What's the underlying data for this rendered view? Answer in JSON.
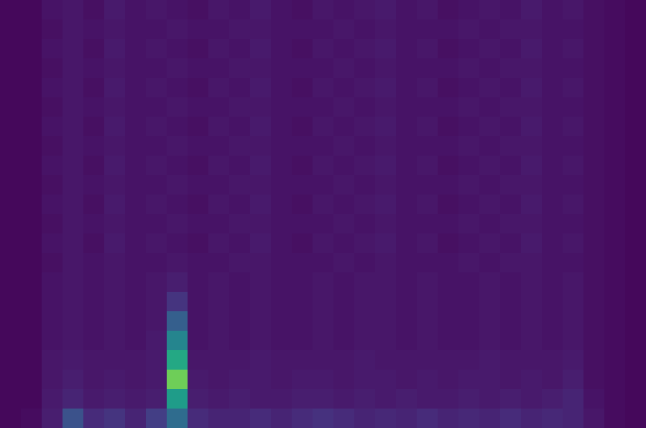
{
  "chart_data": {
    "type": "heatmap",
    "color": "Viridis",
    "tick_labels": false,
    "xlim": [
      -0.5,
      30.5
    ],
    "ylim": [
      21.5,
      -0.5
    ],
    "zlim": [
      0,
      1
    ],
    "z": [
      [
        0.02,
        0.02,
        0.05,
        0.06,
        0.04,
        0.07,
        0.05,
        0.06,
        0.05,
        0.04,
        0.06,
        0.05,
        0.07,
        0.05,
        0.04,
        0.06,
        0.05,
        0.06,
        0.07,
        0.05,
        0.06,
        0.04,
        0.05,
        0.06,
        0.05,
        0.07,
        0.05,
        0.06,
        0.04,
        0.03,
        0.02
      ],
      [
        0.02,
        0.02,
        0.04,
        0.06,
        0.05,
        0.06,
        0.05,
        0.05,
        0.06,
        0.05,
        0.05,
        0.06,
        0.06,
        0.05,
        0.05,
        0.05,
        0.06,
        0.05,
        0.06,
        0.05,
        0.05,
        0.05,
        0.06,
        0.05,
        0.06,
        0.06,
        0.05,
        0.05,
        0.04,
        0.03,
        0.02
      ],
      [
        0.02,
        0.02,
        0.05,
        0.06,
        0.04,
        0.07,
        0.05,
        0.06,
        0.05,
        0.04,
        0.06,
        0.05,
        0.07,
        0.05,
        0.04,
        0.06,
        0.05,
        0.06,
        0.07,
        0.05,
        0.06,
        0.04,
        0.05,
        0.06,
        0.05,
        0.07,
        0.05,
        0.06,
        0.04,
        0.03,
        0.02
      ],
      [
        0.02,
        0.02,
        0.04,
        0.06,
        0.05,
        0.06,
        0.05,
        0.05,
        0.06,
        0.05,
        0.05,
        0.06,
        0.06,
        0.05,
        0.05,
        0.05,
        0.06,
        0.05,
        0.06,
        0.05,
        0.05,
        0.05,
        0.06,
        0.05,
        0.06,
        0.06,
        0.05,
        0.05,
        0.04,
        0.03,
        0.02
      ],
      [
        0.02,
        0.02,
        0.05,
        0.06,
        0.04,
        0.07,
        0.05,
        0.06,
        0.05,
        0.04,
        0.06,
        0.05,
        0.07,
        0.05,
        0.04,
        0.06,
        0.05,
        0.06,
        0.07,
        0.05,
        0.06,
        0.04,
        0.05,
        0.06,
        0.05,
        0.07,
        0.05,
        0.06,
        0.04,
        0.03,
        0.02
      ],
      [
        0.02,
        0.02,
        0.04,
        0.06,
        0.05,
        0.06,
        0.05,
        0.05,
        0.06,
        0.05,
        0.05,
        0.06,
        0.06,
        0.05,
        0.05,
        0.05,
        0.06,
        0.05,
        0.06,
        0.05,
        0.05,
        0.05,
        0.06,
        0.05,
        0.06,
        0.06,
        0.05,
        0.05,
        0.04,
        0.03,
        0.02
      ],
      [
        0.02,
        0.02,
        0.05,
        0.06,
        0.04,
        0.07,
        0.05,
        0.06,
        0.05,
        0.04,
        0.06,
        0.05,
        0.07,
        0.05,
        0.04,
        0.06,
        0.05,
        0.06,
        0.07,
        0.05,
        0.06,
        0.04,
        0.05,
        0.06,
        0.05,
        0.07,
        0.05,
        0.06,
        0.04,
        0.03,
        0.02
      ],
      [
        0.02,
        0.02,
        0.04,
        0.06,
        0.05,
        0.06,
        0.05,
        0.05,
        0.06,
        0.05,
        0.05,
        0.06,
        0.06,
        0.05,
        0.05,
        0.05,
        0.06,
        0.05,
        0.06,
        0.05,
        0.05,
        0.05,
        0.06,
        0.05,
        0.06,
        0.06,
        0.05,
        0.05,
        0.04,
        0.03,
        0.02
      ],
      [
        0.02,
        0.02,
        0.05,
        0.06,
        0.04,
        0.07,
        0.05,
        0.06,
        0.05,
        0.04,
        0.06,
        0.05,
        0.07,
        0.05,
        0.04,
        0.06,
        0.05,
        0.06,
        0.07,
        0.05,
        0.06,
        0.04,
        0.05,
        0.06,
        0.05,
        0.07,
        0.05,
        0.06,
        0.04,
        0.03,
        0.02
      ],
      [
        0.02,
        0.02,
        0.04,
        0.06,
        0.05,
        0.06,
        0.05,
        0.05,
        0.06,
        0.05,
        0.05,
        0.06,
        0.06,
        0.05,
        0.05,
        0.05,
        0.06,
        0.05,
        0.06,
        0.05,
        0.05,
        0.05,
        0.06,
        0.05,
        0.06,
        0.06,
        0.05,
        0.05,
        0.04,
        0.03,
        0.02
      ],
      [
        0.02,
        0.02,
        0.05,
        0.06,
        0.04,
        0.07,
        0.05,
        0.06,
        0.05,
        0.04,
        0.06,
        0.05,
        0.07,
        0.05,
        0.04,
        0.06,
        0.05,
        0.06,
        0.07,
        0.05,
        0.06,
        0.04,
        0.05,
        0.06,
        0.05,
        0.07,
        0.05,
        0.06,
        0.04,
        0.03,
        0.02
      ],
      [
        0.02,
        0.02,
        0.04,
        0.06,
        0.05,
        0.06,
        0.05,
        0.05,
        0.06,
        0.05,
        0.05,
        0.06,
        0.06,
        0.05,
        0.05,
        0.05,
        0.06,
        0.05,
        0.06,
        0.05,
        0.05,
        0.05,
        0.06,
        0.05,
        0.06,
        0.06,
        0.05,
        0.05,
        0.04,
        0.03,
        0.02
      ],
      [
        0.02,
        0.02,
        0.05,
        0.06,
        0.04,
        0.07,
        0.05,
        0.06,
        0.05,
        0.04,
        0.06,
        0.05,
        0.07,
        0.05,
        0.04,
        0.06,
        0.05,
        0.06,
        0.07,
        0.05,
        0.06,
        0.04,
        0.05,
        0.06,
        0.05,
        0.07,
        0.05,
        0.06,
        0.04,
        0.03,
        0.02
      ],
      [
        0.02,
        0.02,
        0.04,
        0.06,
        0.05,
        0.06,
        0.05,
        0.05,
        0.06,
        0.05,
        0.05,
        0.06,
        0.06,
        0.05,
        0.05,
        0.05,
        0.06,
        0.05,
        0.06,
        0.05,
        0.05,
        0.05,
        0.06,
        0.05,
        0.06,
        0.06,
        0.05,
        0.05,
        0.04,
        0.03,
        0.02
      ],
      [
        0.02,
        0.02,
        0.05,
        0.06,
        0.05,
        0.06,
        0.05,
        0.06,
        0.08,
        0.05,
        0.06,
        0.05,
        0.06,
        0.05,
        0.05,
        0.06,
        0.05,
        0.06,
        0.06,
        0.05,
        0.06,
        0.05,
        0.05,
        0.06,
        0.05,
        0.06,
        0.05,
        0.06,
        0.04,
        0.03,
        0.02
      ],
      [
        0.02,
        0.02,
        0.05,
        0.06,
        0.05,
        0.06,
        0.05,
        0.06,
        0.15,
        0.05,
        0.06,
        0.05,
        0.06,
        0.05,
        0.05,
        0.06,
        0.05,
        0.06,
        0.06,
        0.05,
        0.06,
        0.05,
        0.05,
        0.06,
        0.05,
        0.06,
        0.05,
        0.06,
        0.04,
        0.03,
        0.02
      ],
      [
        0.02,
        0.02,
        0.05,
        0.06,
        0.05,
        0.06,
        0.05,
        0.06,
        0.3,
        0.05,
        0.06,
        0.05,
        0.06,
        0.05,
        0.05,
        0.06,
        0.05,
        0.06,
        0.06,
        0.05,
        0.06,
        0.05,
        0.05,
        0.06,
        0.05,
        0.06,
        0.05,
        0.06,
        0.04,
        0.03,
        0.02
      ],
      [
        0.02,
        0.02,
        0.05,
        0.06,
        0.05,
        0.06,
        0.05,
        0.07,
        0.45,
        0.05,
        0.06,
        0.05,
        0.06,
        0.05,
        0.05,
        0.06,
        0.05,
        0.06,
        0.06,
        0.05,
        0.06,
        0.05,
        0.05,
        0.06,
        0.05,
        0.06,
        0.05,
        0.06,
        0.04,
        0.03,
        0.02
      ],
      [
        0.02,
        0.02,
        0.06,
        0.07,
        0.06,
        0.06,
        0.06,
        0.07,
        0.6,
        0.06,
        0.06,
        0.06,
        0.07,
        0.06,
        0.06,
        0.06,
        0.06,
        0.07,
        0.06,
        0.06,
        0.06,
        0.06,
        0.06,
        0.07,
        0.06,
        0.06,
        0.06,
        0.07,
        0.04,
        0.03,
        0.02
      ],
      [
        0.02,
        0.02,
        0.06,
        0.08,
        0.06,
        0.07,
        0.06,
        0.07,
        0.78,
        0.07,
        0.06,
        0.07,
        0.07,
        0.06,
        0.07,
        0.07,
        0.06,
        0.07,
        0.07,
        0.06,
        0.07,
        0.06,
        0.07,
        0.07,
        0.06,
        0.07,
        0.06,
        0.08,
        0.04,
        0.03,
        0.02
      ],
      [
        0.02,
        0.02,
        0.07,
        0.1,
        0.07,
        0.08,
        0.07,
        0.08,
        0.55,
        0.08,
        0.07,
        0.08,
        0.07,
        0.07,
        0.08,
        0.08,
        0.07,
        0.08,
        0.07,
        0.08,
        0.07,
        0.07,
        0.08,
        0.07,
        0.08,
        0.07,
        0.08,
        0.1,
        0.05,
        0.03,
        0.02
      ],
      [
        0.02,
        0.03,
        0.08,
        0.25,
        0.12,
        0.15,
        0.1,
        0.18,
        0.35,
        0.12,
        0.1,
        0.1,
        0.12,
        0.1,
        0.12,
        0.14,
        0.12,
        0.1,
        0.11,
        0.1,
        0.12,
        0.1,
        0.11,
        0.1,
        0.12,
        0.1,
        0.11,
        0.1,
        0.06,
        0.03,
        0.02
      ]
    ]
  }
}
